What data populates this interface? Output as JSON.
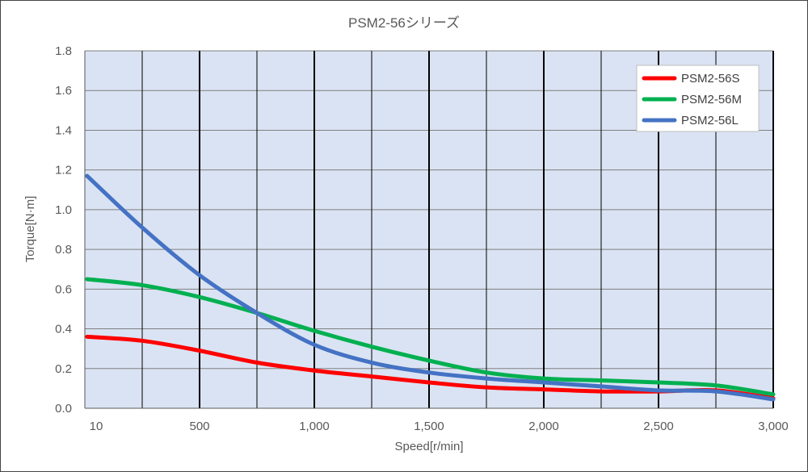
{
  "chart_data": {
    "type": "line",
    "title": "PSM2-56シリーズ",
    "xlabel": "Speed[r/min]",
    "ylabel": "Torque[N·m]",
    "xlim": [
      10,
      3000
    ],
    "ylim": [
      0,
      1.8
    ],
    "x_tick_labels": [
      "10",
      "500",
      "1,000",
      "1,500",
      "2,000",
      "2,500",
      "3,000"
    ],
    "x_tick_values": [
      10,
      500,
      1000,
      1500,
      2000,
      2500,
      3000
    ],
    "y_tick_labels": [
      "0.0",
      "0.2",
      "0.4",
      "0.6",
      "0.8",
      "1.0",
      "1.2",
      "1.4",
      "1.6",
      "1.8"
    ],
    "y_tick_values": [
      0,
      0.2,
      0.4,
      0.6,
      0.8,
      1.0,
      1.2,
      1.4,
      1.6,
      1.8
    ],
    "grid": true,
    "legend_position": "top-right",
    "plot_background": "#dae3f3",
    "series": [
      {
        "name": "PSM2-56S",
        "color": "#ff0000",
        "x": [
          10,
          250,
          500,
          750,
          1000,
          1250,
          1500,
          1750,
          2000,
          2250,
          2500,
          2750,
          3000
        ],
        "y": [
          0.36,
          0.34,
          0.29,
          0.23,
          0.19,
          0.16,
          0.13,
          0.105,
          0.095,
          0.085,
          0.085,
          0.09,
          0.05
        ]
      },
      {
        "name": "PSM2-56M",
        "color": "#00b050",
        "x": [
          10,
          250,
          500,
          750,
          1000,
          1250,
          1500,
          1750,
          2000,
          2250,
          2500,
          2750,
          3000
        ],
        "y": [
          0.65,
          0.62,
          0.56,
          0.48,
          0.39,
          0.31,
          0.24,
          0.18,
          0.15,
          0.14,
          0.13,
          0.115,
          0.07
        ]
      },
      {
        "name": "PSM2-56L",
        "color": "#4472c4",
        "x": [
          10,
          250,
          500,
          750,
          1000,
          1250,
          1500,
          1750,
          2000,
          2250,
          2500,
          2750,
          3000
        ],
        "y": [
          1.17,
          0.91,
          0.67,
          0.48,
          0.32,
          0.23,
          0.18,
          0.15,
          0.13,
          0.11,
          0.09,
          0.085,
          0.045
        ]
      }
    ]
  }
}
